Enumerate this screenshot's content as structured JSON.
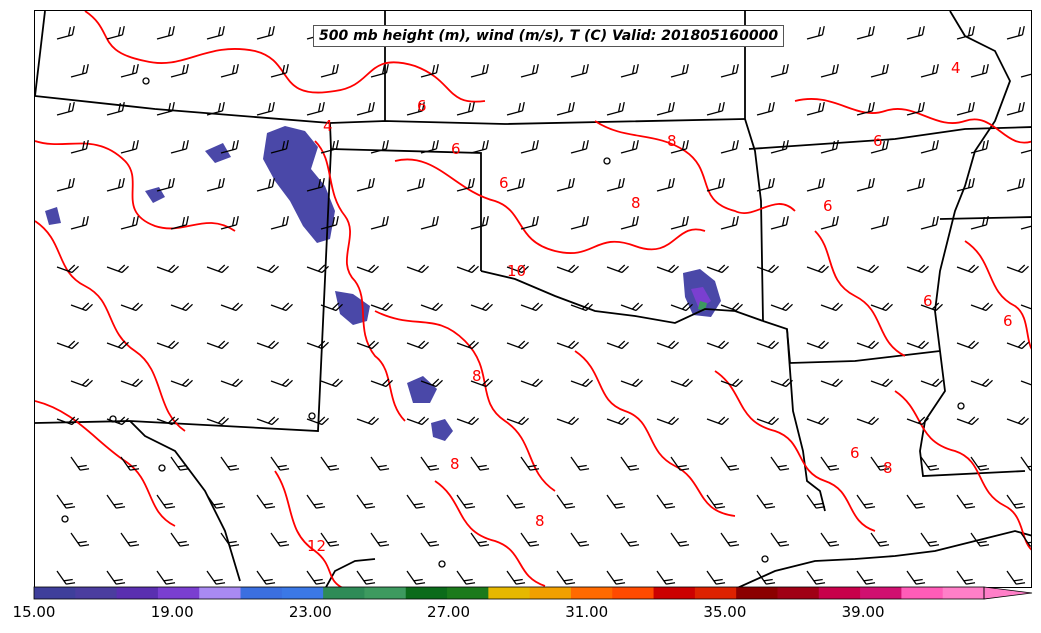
{
  "title": "500 mb height (m), wind (m/s), T (C) Valid: 201805160000",
  "colorbar": {
    "min": 15,
    "max": 42.5,
    "step": 2,
    "colors": [
      "#3f3f9b",
      "#4b3d9f",
      "#5a2fb0",
      "#7a3fd0",
      "#a98af2",
      "#3b6fe0",
      "#3b78e6",
      "#2e8b57",
      "#3d9a5f",
      "#0b6b1a",
      "#1b7a1b",
      "#e6b800",
      "#f1a000",
      "#ff6a00",
      "#ff4a00",
      "#cc0000",
      "#dd2200",
      "#8b0000",
      "#a00015",
      "#c8004a",
      "#d01070",
      "#ff5cb8",
      "#ff7fc8"
    ],
    "tick_labels": [
      "15.00",
      "19.00",
      "23.00",
      "27.00",
      "31.00",
      "35.00",
      "39.00"
    ],
    "extend": "max"
  },
  "contour_labels": [
    "4",
    "6",
    "6",
    "6",
    "8",
    "8",
    "10",
    "8",
    "6",
    "6",
    "6",
    "4",
    "6",
    "8",
    "8",
    "12",
    "8",
    "6"
  ],
  "colors": {
    "contour": "#ff0000",
    "boundary": "#000000",
    "wind_barb": "#000000",
    "precip": "#4a48a8"
  }
}
